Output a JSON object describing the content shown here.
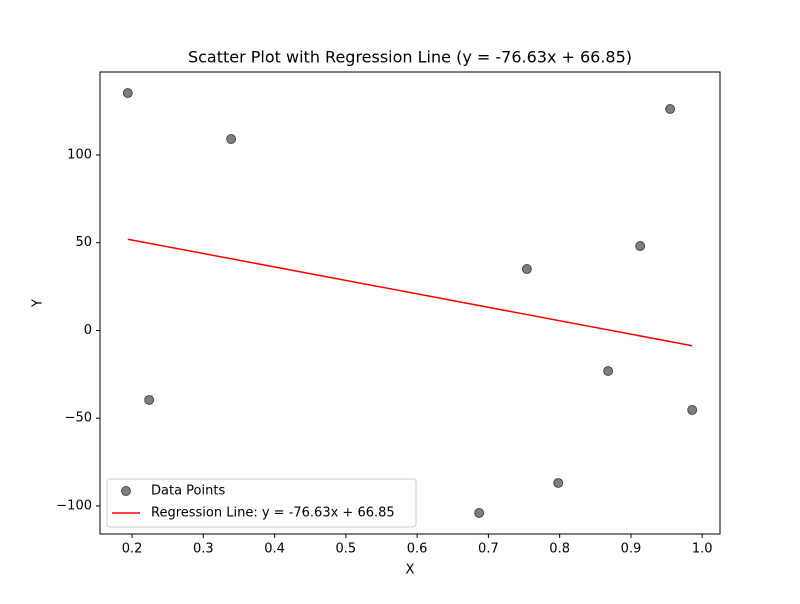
{
  "chart_data": {
    "type": "scatter",
    "title": "Scatter Plot with Regression Line (y = -76.63x + 66.85)",
    "xlabel": "X",
    "ylabel": "Y",
    "xlim": [
      0.155,
      1.025
    ],
    "ylim": [
      -116,
      147.3
    ],
    "xticks": [
      0.2,
      0.3,
      0.4,
      0.5,
      0.6,
      0.7,
      0.8,
      0.9,
      {
        "value": 1.0,
        "label": "1.0"
      }
    ],
    "yticks": [
      {
        "value": -100,
        "label": "−100"
      },
      {
        "value": -50,
        "label": "−50"
      },
      0,
      50,
      100
    ],
    "legend": "lower left",
    "series": [
      {
        "name": "Data Points",
        "mode": "markers",
        "color": "#000000",
        "x": [
          0.194,
          0.224,
          0.339,
          0.687,
          0.754,
          0.798,
          0.868,
          0.913,
          0.955,
          0.986
        ],
        "values": [
          135.3,
          -39.6,
          109.1,
          -104,
          35.0,
          -86.9,
          -23.1,
          48.1,
          126.2,
          -45.3
        ]
      },
      {
        "name": "Regression Line: y = -76.63x + 66.85",
        "mode": "line",
        "color": "#ff0000",
        "x": [
          0.194,
          0.986
        ],
        "values": [
          51.98,
          -8.71
        ]
      }
    ]
  }
}
